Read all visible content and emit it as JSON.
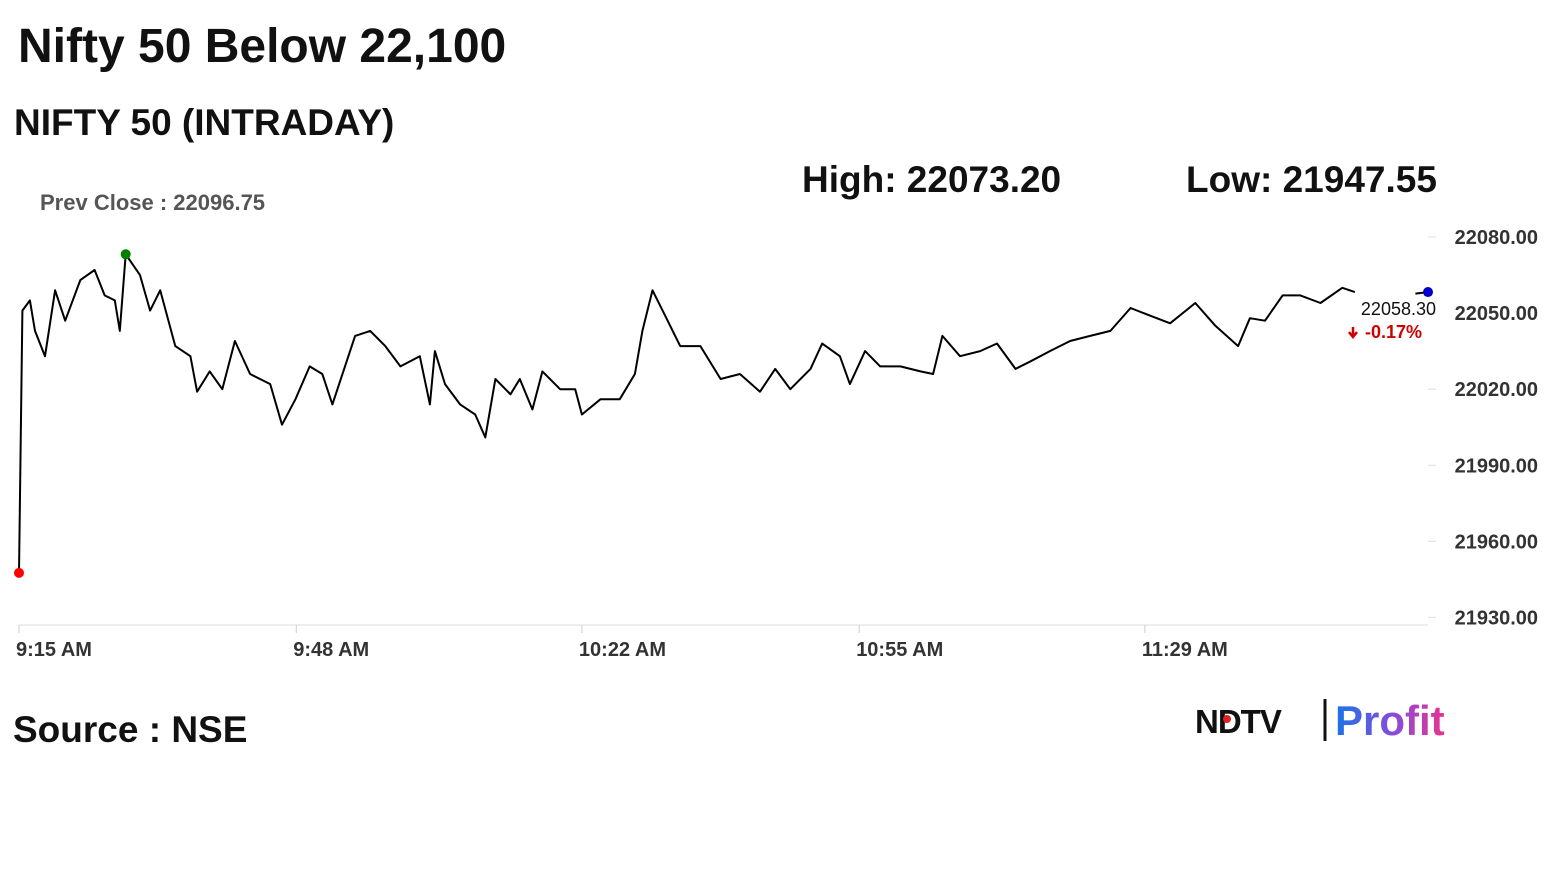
{
  "chart_data": {
    "type": "line",
    "title": "Nifty 50 Below 22,100",
    "subtitle": "NIFTY 50 (INTRADAY)",
    "high_label": "High: 22073.20",
    "low_label": "Low: 21947.55",
    "prev_close_label": "Prev Close : 22096.75",
    "last_value_label": "22058.30",
    "change_label": "-0.17%",
    "source": "Source : NSE",
    "logo": [
      "NDTV",
      "Profit"
    ],
    "x": [
      555,
      555.4,
      556.3,
      556.9,
      558.1,
      559.3,
      560.5,
      562.3,
      564,
      565.2,
      566.4,
      567,
      567.7,
      569.4,
      570.6,
      571.8,
      573.6,
      575.4,
      576.2,
      577.7,
      579.2,
      580.7,
      582.5,
      584.9,
      586.3,
      587.9,
      589.6,
      591.1,
      592.3,
      595,
      596.8,
      598.6,
      600.4,
      602.7,
      603.9,
      604.5,
      605.7,
      607.5,
      609.3,
      610.5,
      611.7,
      613.5,
      614.6,
      616.1,
      617.3,
      619.4,
      621.2,
      622,
      624.2,
      626.5,
      628.3,
      629.2,
      630.4,
      631.9,
      633.7,
      636.1,
      638.5,
      640.8,
      643.2,
      645,
      646.8,
      649.2,
      650.6,
      652.7,
      653.9,
      655.7,
      657.5,
      659.9,
      662.3,
      663.8,
      664.9,
      667,
      669.4,
      671.4,
      673.6,
      675.4,
      677.7,
      680.1,
      682.5,
      684.9,
      687.3,
      689.6,
      692,
      695,
      697.4,
      700.1,
      701.5,
      703.3,
      705.4,
      707.5,
      709.9,
      712.5,
      714,
      716,
      721.2,
      722.7
    ],
    "series": [
      {
        "name": "NIFTY 50",
        "color": "#000000",
        "values": [
          21947.55,
          22051,
          22055,
          22043,
          22033,
          22059,
          22047,
          22063,
          22067,
          22057,
          22055,
          22043,
          22073.2,
          22065,
          22051,
          22059,
          22037,
          22033,
          22019,
          22027,
          22020,
          22039,
          22026,
          22022,
          22006,
          22016,
          22029,
          22026,
          22014,
          22041,
          22043,
          22037,
          22029,
          22033,
          22014,
          22035,
          22022,
          22014,
          22010,
          22001,
          22024,
          22018,
          22024,
          22012,
          22027,
          22020,
          22020,
          22010,
          22016,
          22016,
          22026,
          22043,
          22059,
          22049,
          22037,
          22037,
          22024,
          22026,
          22019,
          22028,
          22020,
          22028,
          22038,
          22033,
          22022,
          22035,
          22029,
          22029,
          22027,
          22026,
          22041,
          22033,
          22035,
          22038,
          22028,
          22031,
          22035,
          22039,
          22041,
          22043,
          22052,
          22049,
          22046,
          22054,
          22045,
          22037,
          22048,
          22047,
          22057,
          22057,
          22054,
          22060,
          22058.3,
          null,
          22057.7,
          22058.3
        ]
      }
    ],
    "high_color": "#008000",
    "low_color": "#ff0000",
    "last_color": "#0000cc",
    "change_color": "#d00000",
    "xlim": [
      555,
      722.7
    ],
    "xticks": [
      {
        "value": 555,
        "label": "9:15 AM"
      },
      {
        "value": 588,
        "label": "9:48 AM"
      },
      {
        "value": 622,
        "label": "10:22 AM"
      },
      {
        "value": 655,
        "label": "10:55 AM"
      },
      {
        "value": 689,
        "label": "11:29 AM"
      }
    ],
    "ylim": [
      21927,
      22095
    ],
    "yticks": [
      {
        "value": 21930,
        "label": "21930.00"
      },
      {
        "value": 21960,
        "label": "21960.00"
      },
      {
        "value": 21990,
        "label": "21990.00"
      },
      {
        "value": 22020,
        "label": "22020.00"
      },
      {
        "value": 22050,
        "label": "22050.00"
      },
      {
        "value": 22080,
        "label": "22080.00"
      }
    ]
  }
}
